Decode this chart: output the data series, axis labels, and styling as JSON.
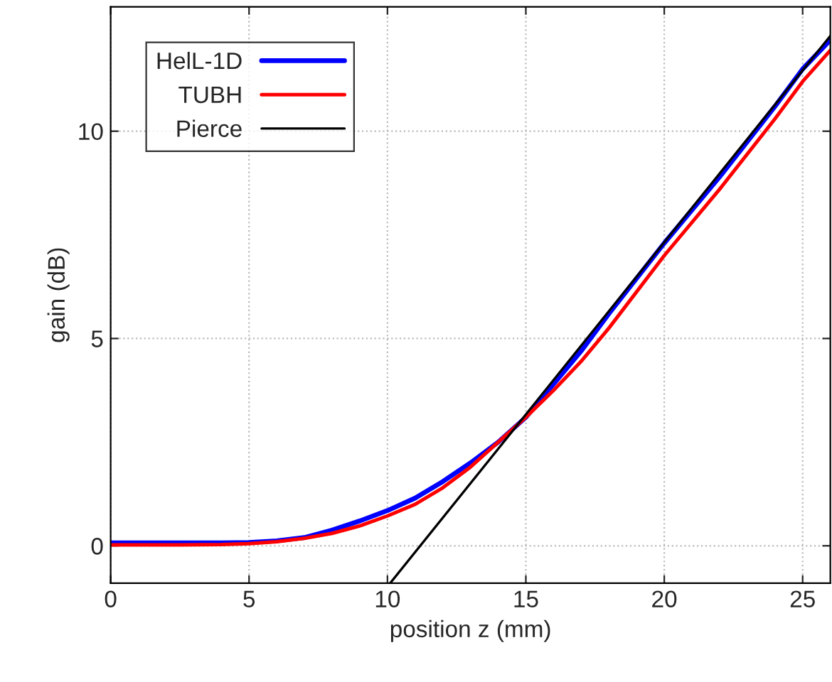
{
  "chart_data": {
    "type": "line",
    "xlabel": "position z (mm)",
    "ylabel": "gain (dB)",
    "xlim": [
      0,
      26
    ],
    "ylim": [
      -0.9,
      13
    ],
    "xticks": [
      0,
      5,
      10,
      15,
      20,
      25
    ],
    "yticks": [
      0,
      5,
      10
    ],
    "grid": true,
    "legend": "top left",
    "line_style": "solid",
    "series": [
      {
        "name": "HelL-1D",
        "color": "#0000ff",
        "x": [
          0,
          2,
          4,
          5,
          6,
          7,
          8,
          9,
          10,
          11,
          12,
          13,
          14,
          15,
          16,
          17,
          18,
          20,
          22,
          24,
          25,
          26
        ],
        "values": [
          0.07,
          0.07,
          0.07,
          0.08,
          0.12,
          0.2,
          0.38,
          0.6,
          0.85,
          1.15,
          1.55,
          2.0,
          2.5,
          3.1,
          3.9,
          4.7,
          5.6,
          7.3,
          8.9,
          10.6,
          11.5,
          12.2
        ]
      },
      {
        "name": "TUBH",
        "color": "#ff0000",
        "x": [
          0,
          2,
          4,
          5,
          6,
          7,
          8,
          9,
          10,
          11,
          12,
          13,
          14,
          15,
          16,
          17,
          18,
          20,
          22,
          24,
          25,
          26
        ],
        "values": [
          0.02,
          0.02,
          0.03,
          0.05,
          0.1,
          0.18,
          0.3,
          0.48,
          0.72,
          1.0,
          1.4,
          1.9,
          2.5,
          3.1,
          3.75,
          4.45,
          5.25,
          7.0,
          8.6,
          10.3,
          11.2,
          11.95
        ]
      },
      {
        "name": "Pierce",
        "color": "#000000",
        "x": [
          10.1,
          26
        ],
        "values": [
          -0.9,
          12.3
        ]
      }
    ]
  }
}
